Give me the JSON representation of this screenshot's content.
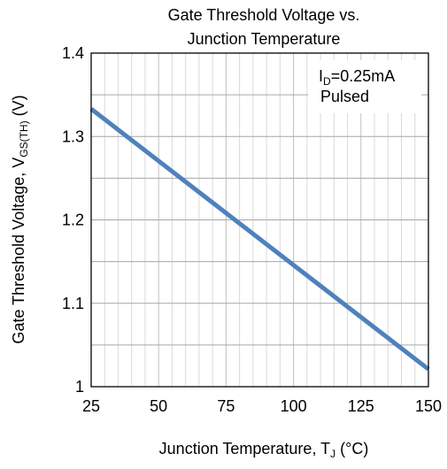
{
  "chart_data": {
    "type": "line",
    "title_line1": "Gate Threshold  Voltage vs.",
    "title_line2": "Junction Temperature",
    "xlabel_main": "Junction Temperature, T",
    "xlabel_sub": "J",
    "xlabel_unit": " (°C)",
    "ylabel_main": "Gate Threshold  Voltage, V",
    "ylabel_sub": "GS(TH)",
    "ylabel_unit": " (V)",
    "xlim": [
      25,
      150
    ],
    "ylim": [
      1.0,
      1.4
    ],
    "x_ticks": [
      25,
      50,
      75,
      100,
      125,
      150
    ],
    "x_tick_labels": [
      "25",
      "50",
      "75",
      "100",
      "125",
      "150"
    ],
    "y_ticks": [
      1.0,
      1.1,
      1.2,
      1.3,
      1.4
    ],
    "y_tick_labels": [
      "1",
      "1.1",
      "1.2",
      "1.3",
      "1.4"
    ],
    "x_minor_step": 5,
    "y_minor_step": 0.05,
    "grid": true,
    "annotation_line1_main": "I",
    "annotation_line1_sub": "D",
    "annotation_line1_rest": "=0.25mA",
    "annotation_line2": "Pulsed",
    "series": [
      {
        "color": "#4f81bd",
        "x": [
          25,
          150
        ],
        "y": [
          1.333,
          1.021
        ]
      }
    ]
  }
}
